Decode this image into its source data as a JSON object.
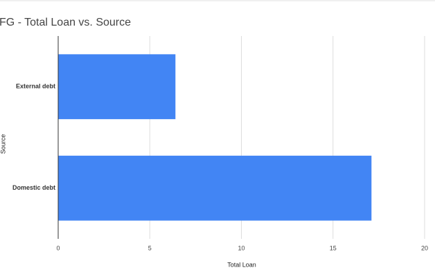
{
  "chart_data": {
    "type": "bar",
    "orientation": "horizontal",
    "title": "FG - Total Loan vs. Source",
    "categories": [
      "External debt",
      "Domestic debt"
    ],
    "values": [
      6.4,
      17.1
    ],
    "color": "#4285f4",
    "xlabel": "Total Loan",
    "ylabel": "Source",
    "xlim": [
      0,
      20
    ],
    "xticks": [
      0,
      5,
      10,
      15,
      20
    ],
    "grid": true
  }
}
